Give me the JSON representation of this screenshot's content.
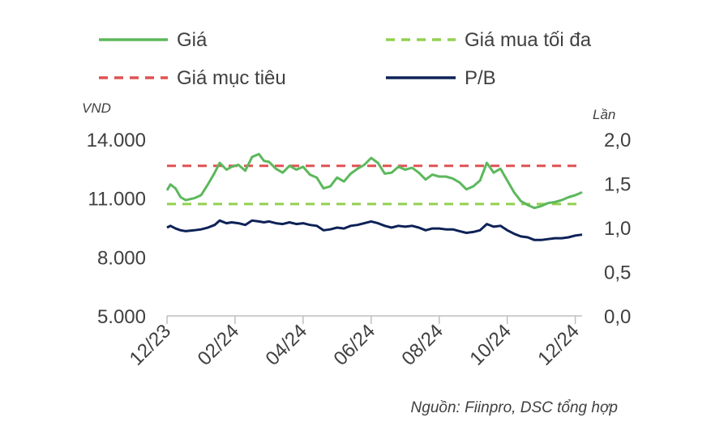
{
  "colors": {
    "price": "#5cb85c",
    "buy_max": "#92d050",
    "target": "#e05252",
    "pb": "#0d2257",
    "axis": "#bfbfbf",
    "text": "#404040"
  },
  "legend": {
    "price": "Giá",
    "buy_max": "Giá mua tối đa",
    "target": "Giá mục tiêu",
    "pb": "P/B"
  },
  "source": "Nguồn: Fiinpro, DSC tổng hợp",
  "chart_data": {
    "type": "line",
    "title": "",
    "y_left": {
      "label": "VND",
      "ticks": [
        "5.000",
        "8.000",
        "11.000",
        "14.000"
      ],
      "range": [
        5000,
        14000
      ]
    },
    "y_right": {
      "label": "Lần",
      "ticks": [
        "0,0",
        "0,5",
        "1,0",
        "1,5",
        "2,0"
      ],
      "range": [
        0,
        2
      ]
    },
    "x": {
      "ticks": [
        "12/23",
        "02/24",
        "04/24",
        "06/24",
        "08/24",
        "10/24",
        "12/24"
      ],
      "range": [
        0,
        12.2
      ]
    },
    "grid": false,
    "legend_position": "top",
    "series": [
      {
        "name": "Giá",
        "axis": "left",
        "x": [
          0,
          0.1,
          0.25,
          0.4,
          0.55,
          0.8,
          1.0,
          1.2,
          1.4,
          1.55,
          1.75,
          1.9,
          2.1,
          2.3,
          2.5,
          2.7,
          2.85,
          3.0,
          3.2,
          3.4,
          3.6,
          3.8,
          4.0,
          4.2,
          4.4,
          4.6,
          4.8,
          5.0,
          5.2,
          5.4,
          5.6,
          5.8,
          6.0,
          6.2,
          6.4,
          6.6,
          6.8,
          7.0,
          7.2,
          7.4,
          7.6,
          7.8,
          8.0,
          8.2,
          8.4,
          8.6,
          8.8,
          9.0,
          9.2,
          9.4,
          9.6,
          9.8,
          10.0,
          10.2,
          10.4,
          10.6,
          10.8,
          11.0,
          11.2,
          11.4,
          11.6,
          11.8,
          12.0,
          12.2
        ],
        "values": [
          11400,
          11700,
          11500,
          11050,
          10900,
          11000,
          11150,
          11700,
          12300,
          12800,
          12450,
          12600,
          12700,
          12400,
          13100,
          13250,
          12900,
          12850,
          12500,
          12300,
          12650,
          12450,
          12600,
          12200,
          12050,
          11500,
          11600,
          12050,
          11850,
          12250,
          12500,
          12700,
          13050,
          12800,
          12250,
          12300,
          12600,
          12450,
          12550,
          12300,
          11950,
          12200,
          12100,
          12100,
          12000,
          11800,
          11450,
          11600,
          11900,
          12800,
          12300,
          12500,
          11900,
          11300,
          10850,
          10650,
          10500,
          10600,
          10750,
          10800,
          10900,
          11050,
          11150,
          11300
        ]
      },
      {
        "name": "Giá mua tối đa",
        "axis": "left",
        "constant": 10700
      },
      {
        "name": "Giá mục tiêu",
        "axis": "left",
        "constant": 12650
      },
      {
        "name": "P/B",
        "axis": "right",
        "x": [
          0,
          0.1,
          0.25,
          0.4,
          0.55,
          0.8,
          1.0,
          1.2,
          1.4,
          1.55,
          1.75,
          1.9,
          2.1,
          2.3,
          2.5,
          2.7,
          2.85,
          3.0,
          3.2,
          3.4,
          3.6,
          3.8,
          4.0,
          4.2,
          4.4,
          4.6,
          4.8,
          5.0,
          5.2,
          5.4,
          5.6,
          5.8,
          6.0,
          6.2,
          6.4,
          6.6,
          6.8,
          7.0,
          7.2,
          7.4,
          7.6,
          7.8,
          8.0,
          8.2,
          8.4,
          8.6,
          8.8,
          9.0,
          9.2,
          9.4,
          9.6,
          9.8,
          10.0,
          10.2,
          10.4,
          10.6,
          10.8,
          11.0,
          11.2,
          11.4,
          11.6,
          11.8,
          12.0,
          12.2
        ],
        "values": [
          1.0,
          1.02,
          0.99,
          0.97,
          0.96,
          0.97,
          0.98,
          1.0,
          1.03,
          1.08,
          1.05,
          1.06,
          1.05,
          1.03,
          1.08,
          1.07,
          1.06,
          1.07,
          1.05,
          1.04,
          1.06,
          1.04,
          1.05,
          1.03,
          1.02,
          0.97,
          0.98,
          1.0,
          0.99,
          1.02,
          1.03,
          1.05,
          1.07,
          1.05,
          1.02,
          1.0,
          1.02,
          1.01,
          1.02,
          1.0,
          0.97,
          0.99,
          0.99,
          0.98,
          0.98,
          0.96,
          0.94,
          0.95,
          0.97,
          1.04,
          1.01,
          1.02,
          0.97,
          0.93,
          0.9,
          0.89,
          0.86,
          0.86,
          0.87,
          0.88,
          0.88,
          0.89,
          0.91,
          0.92
        ]
      }
    ]
  }
}
